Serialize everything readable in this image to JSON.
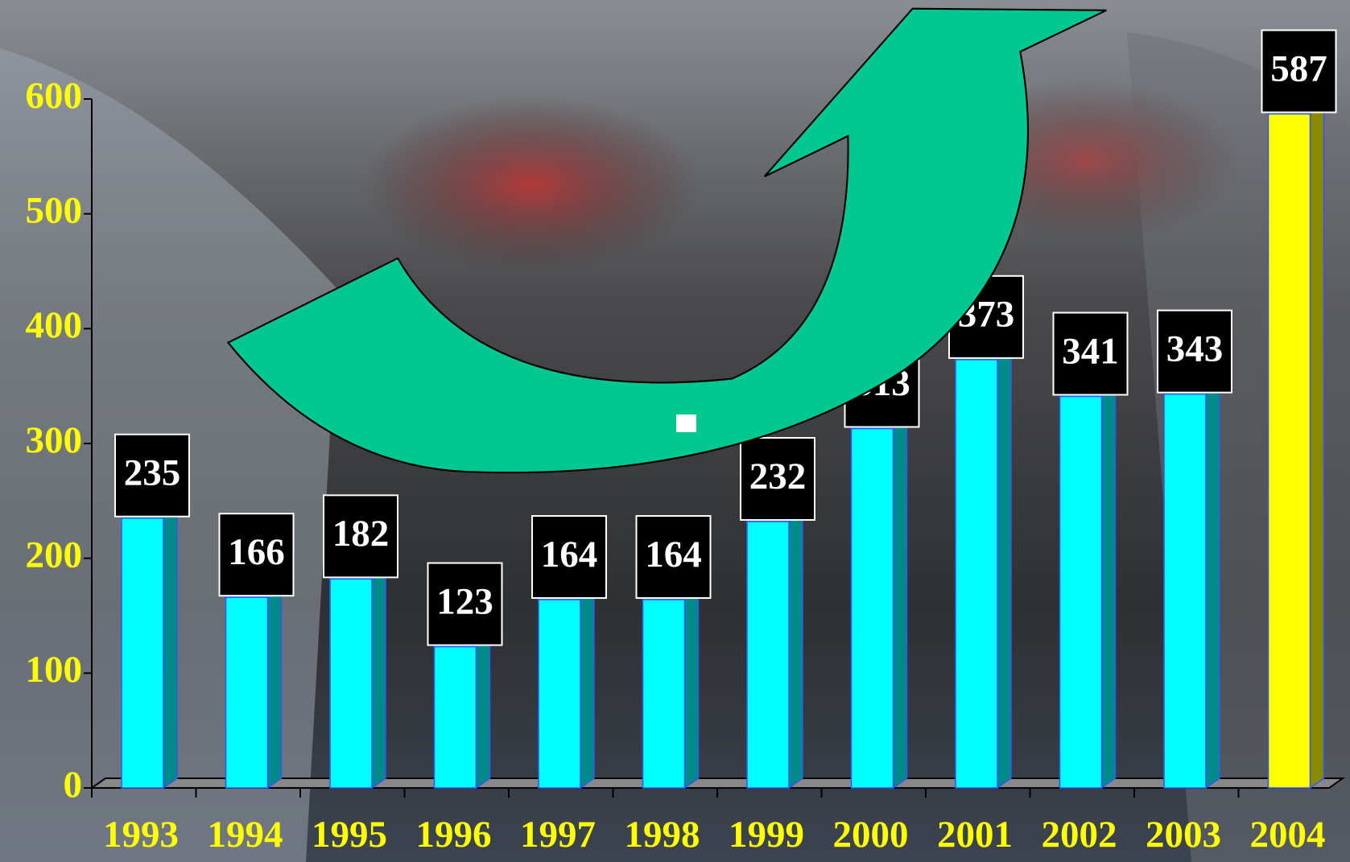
{
  "chart_data": {
    "type": "bar",
    "categories": [
      "1993",
      "1994",
      "1995",
      "1996",
      "1997",
      "1998",
      "1999",
      "2000",
      "2001",
      "2002",
      "2003",
      "2004"
    ],
    "values": [
      235,
      166,
      182,
      123,
      164,
      164,
      232,
      313,
      373,
      341,
      343,
      587
    ],
    "colors": [
      "#00ffff",
      "#00ffff",
      "#00ffff",
      "#00ffff",
      "#00ffff",
      "#00ffff",
      "#00ffff",
      "#00ffff",
      "#00ffff",
      "#00ffff",
      "#00ffff",
      "#ffff00"
    ],
    "ylim": [
      0,
      600
    ],
    "yticks": [
      0,
      100,
      200,
      300,
      400,
      500,
      600
    ]
  }
}
